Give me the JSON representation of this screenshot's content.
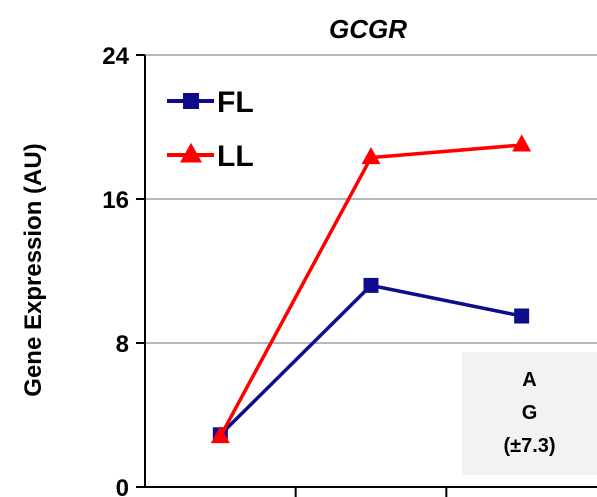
{
  "chart_data": {
    "type": "line",
    "title": "GCGR",
    "ylabel": "Gene Expression (AU)",
    "xlabel": "",
    "x": [
      1,
      2,
      3
    ],
    "xlim": [
      0.5,
      3.5
    ],
    "ylim": [
      0,
      24
    ],
    "yticks": [
      0,
      8,
      16,
      24
    ],
    "ytick_labels": [
      "0",
      "8",
      "16",
      "24"
    ],
    "grid": true,
    "legend_position": "top-left",
    "series": [
      {
        "name": "FL",
        "values": [
          2.9,
          11.2,
          9.5
        ],
        "color": "#0d0d8c",
        "marker": "square"
      },
      {
        "name": "LL",
        "values": [
          2.8,
          18.3,
          19.0
        ],
        "color": "#ff0000",
        "marker": "triangle"
      }
    ],
    "annotation": {
      "lines": [
        "A",
        "G",
        "(±7.3)"
      ],
      "background": "#f2f2f2"
    }
  }
}
